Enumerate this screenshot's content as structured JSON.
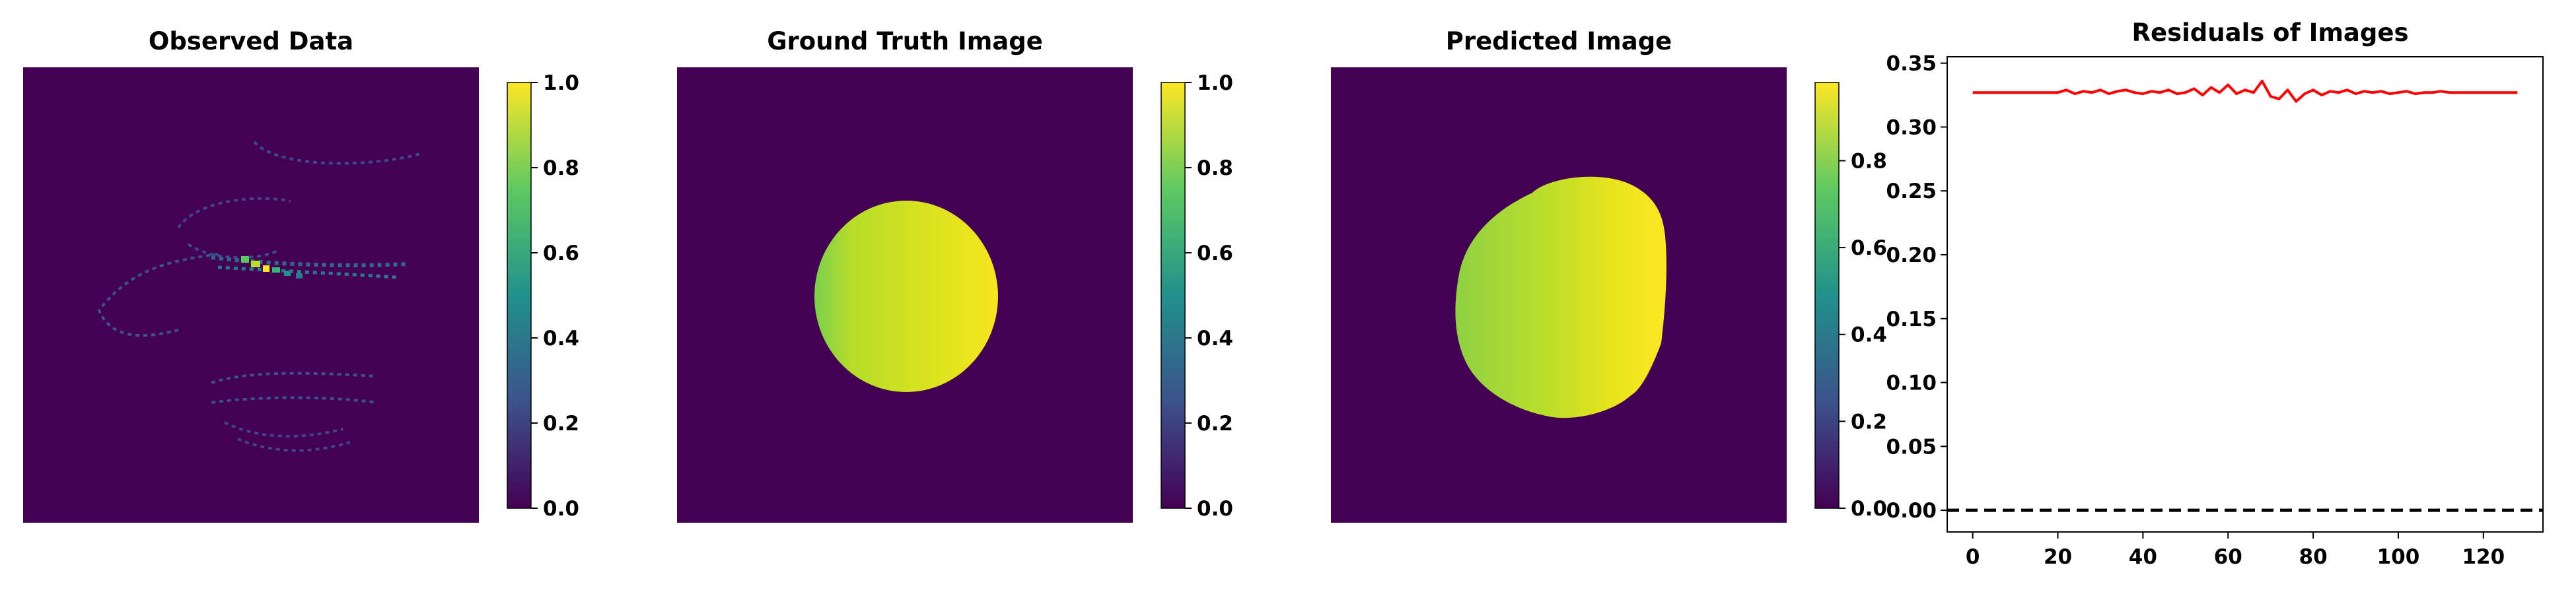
{
  "colors": {
    "background_purple": "#440154",
    "colormap_viridis": [
      "#440154",
      "#3b528b",
      "#21918c",
      "#5ec962",
      "#fde725"
    ],
    "residual_line": "#ff0000",
    "zero_line": "#000000"
  },
  "panels": [
    {
      "title": "Observed Data",
      "kind": "image",
      "description_hint": "sparse spiral tracks on dark background",
      "colorbar": {
        "ticks": [
          "0.0",
          "0.2",
          "0.4",
          "0.6",
          "0.8",
          "1.0"
        ],
        "range": [
          0,
          1.0
        ]
      }
    },
    {
      "title": "Ground Truth Image",
      "kind": "image",
      "colorbar": {
        "ticks": [
          "0.0",
          "0.2",
          "0.4",
          "0.6",
          "0.8",
          "1.0"
        ],
        "range": [
          0,
          1.0
        ]
      }
    },
    {
      "title": "Predicted Image",
      "kind": "image",
      "colorbar": {
        "ticks": [
          "0.0",
          "0.2",
          "0.4",
          "0.6",
          "0.8"
        ],
        "range": [
          0,
          0.98
        ]
      }
    }
  ],
  "chart_data": {
    "type": "line",
    "title": "Residuals of Images",
    "xlabel": "",
    "ylabel": "",
    "xlim": [
      -6,
      134
    ],
    "ylim": [
      -0.017,
      0.355
    ],
    "x_ticks": [
      "0",
      "20",
      "40",
      "60",
      "80",
      "100",
      "120"
    ],
    "y_ticks": [
      "0.00",
      "0.05",
      "0.10",
      "0.15",
      "0.20",
      "0.25",
      "0.30",
      "0.35"
    ],
    "grid": false,
    "series": [
      {
        "color": "#ff0000",
        "style": "solid",
        "x": [
          0,
          5,
          10,
          15,
          20,
          22,
          24,
          26,
          28,
          30,
          32,
          34,
          36,
          38,
          40,
          42,
          44,
          46,
          48,
          50,
          52,
          54,
          56,
          58,
          60,
          62,
          64,
          66,
          68,
          70,
          72,
          74,
          76,
          78,
          80,
          82,
          84,
          86,
          88,
          90,
          92,
          94,
          96,
          98,
          100,
          102,
          104,
          106,
          108,
          110,
          112,
          115,
          120,
          125,
          128
        ],
        "values": [
          0.327,
          0.327,
          0.327,
          0.327,
          0.327,
          0.329,
          0.326,
          0.328,
          0.327,
          0.329,
          0.326,
          0.328,
          0.329,
          0.327,
          0.326,
          0.328,
          0.327,
          0.329,
          0.326,
          0.327,
          0.33,
          0.325,
          0.331,
          0.327,
          0.333,
          0.326,
          0.329,
          0.327,
          0.336,
          0.324,
          0.322,
          0.329,
          0.32,
          0.326,
          0.329,
          0.325,
          0.328,
          0.327,
          0.329,
          0.326,
          0.328,
          0.327,
          0.328,
          0.326,
          0.327,
          0.328,
          0.326,
          0.327,
          0.327,
          0.328,
          0.327,
          0.327,
          0.327,
          0.327,
          0.327
        ]
      },
      {
        "color": "#000000",
        "style": "dashed",
        "x": [
          -6,
          134
        ],
        "values": [
          0,
          0
        ]
      }
    ]
  }
}
